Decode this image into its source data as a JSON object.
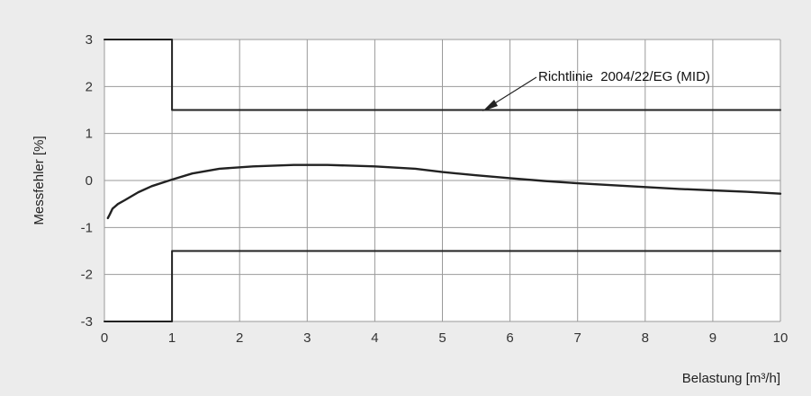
{
  "chart_data": {
    "type": "line",
    "xlabel": "Belastung [m³/h]",
    "ylabel": "Messfehler [%]",
    "xlim": [
      0,
      10
    ],
    "ylim": [
      -3,
      3
    ],
    "xticks": [
      "0",
      "1",
      "2",
      "3",
      "4",
      "5",
      "6",
      "7",
      "8",
      "9",
      "10"
    ],
    "yticks": [
      "3",
      "2",
      "1",
      "0",
      "-1",
      "-2",
      "-3"
    ],
    "grid": true,
    "annotation": "Richtlinie  2004/22/EG (MID)",
    "series": [
      {
        "role": "upper-limit",
        "x": [
          0,
          1,
          1,
          10
        ],
        "y": [
          3,
          3,
          1.5,
          1.5
        ]
      },
      {
        "role": "lower-limit",
        "x": [
          0,
          1,
          1,
          10
        ],
        "y": [
          -3,
          -3,
          -1.5,
          -1.5
        ]
      },
      {
        "role": "measured-error",
        "x": [
          0.05,
          0.08,
          0.12,
          0.2,
          0.3,
          0.5,
          0.7,
          1.0,
          1.3,
          1.7,
          2.2,
          2.8,
          3.3,
          4.0,
          4.6,
          5.0,
          5.5,
          6.0,
          6.5,
          7.0,
          7.5,
          8.0,
          8.5,
          9.0,
          9.5,
          10.0
        ],
        "y": [
          -0.8,
          -0.72,
          -0.6,
          -0.5,
          -0.42,
          -0.25,
          -0.12,
          0.02,
          0.15,
          0.25,
          0.3,
          0.33,
          0.33,
          0.3,
          0.25,
          0.18,
          0.11,
          0.05,
          -0.01,
          -0.06,
          -0.1,
          -0.14,
          -0.18,
          -0.21,
          -0.24,
          -0.28
        ]
      }
    ],
    "colors": {
      "background": "#ececec",
      "plot": "#ffffff",
      "grid": "#9a9a9a",
      "line": "#222222"
    }
  }
}
